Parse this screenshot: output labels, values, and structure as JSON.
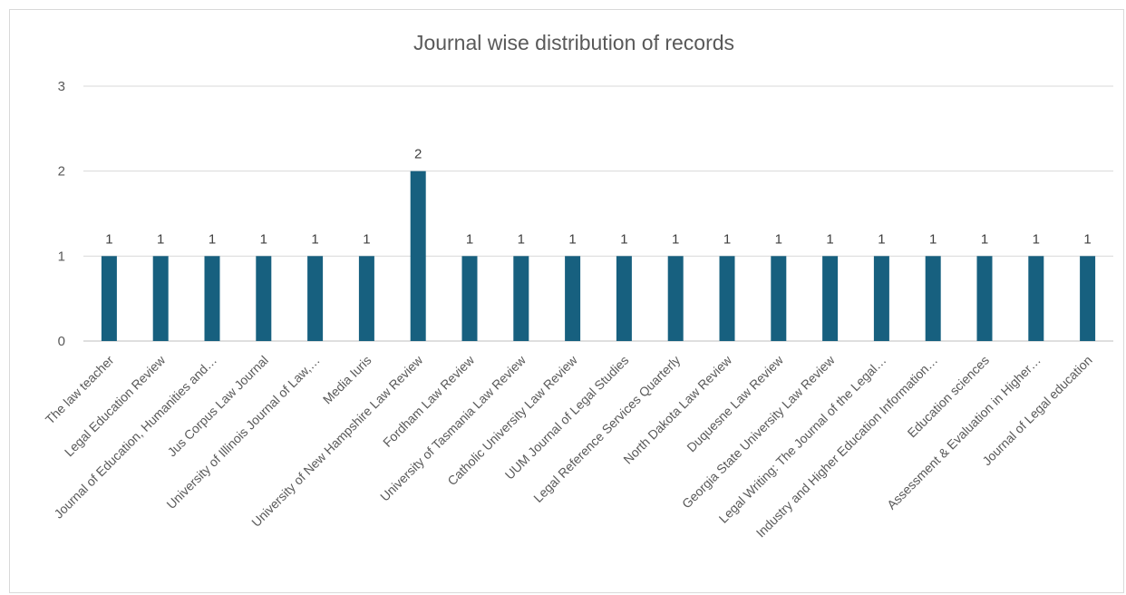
{
  "chart_data": {
    "type": "bar",
    "title": "Journal wise distribution of records",
    "categories": [
      "The law teacher",
      "Legal Education Review",
      "Journal of Education, Humanities and…",
      "Jus Corpus Law Journal",
      "University of Illinois Journal of Law,…",
      "Media Iuris",
      "University of New Hampshire Law Review",
      "Fordham Law Review",
      "University of Tasmania Law Review",
      "Catholic University Law Review",
      "UUM Journal of Legal Studies",
      "Legal Reference Services Quarterly",
      "North Dakota Law Review",
      "Duquesne Law Review",
      "Georgia State University Law Review",
      "Legal Writing: The Journal of the Legal…",
      "Industry and Higher Education Information…",
      "Education sciences",
      "Assessment & Evaluation in Higher…",
      "Journal of Legal education"
    ],
    "values": [
      1,
      1,
      1,
      1,
      1,
      1,
      2,
      1,
      1,
      1,
      1,
      1,
      1,
      1,
      1,
      1,
      1,
      1,
      1,
      1
    ],
    "data_labels": [
      "1",
      "1",
      "1",
      "1",
      "1",
      "1",
      "2",
      "1",
      "1",
      "1",
      "1",
      "1",
      "1",
      "1",
      "1",
      "1",
      "1",
      "1",
      "1",
      "1"
    ],
    "yticks": [
      "0",
      "1",
      "2",
      "3"
    ],
    "ylim": [
      0,
      3
    ],
    "grid": true,
    "legend": "none",
    "bar_color": "#17607f"
  }
}
